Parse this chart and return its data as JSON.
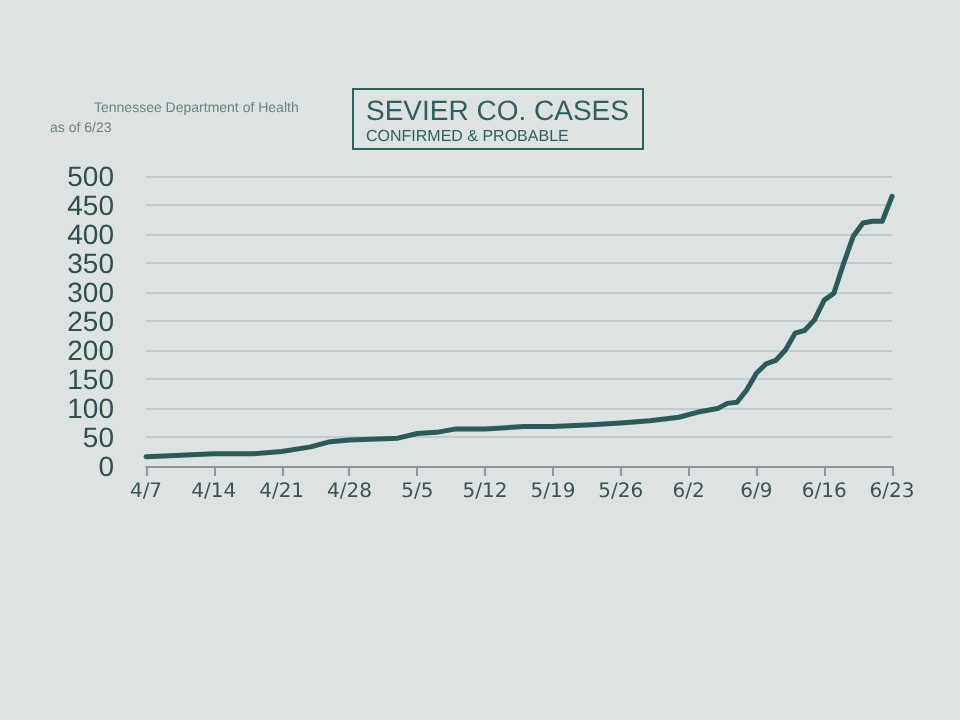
{
  "chart_data": {
    "type": "line",
    "title": "SEVIER CO. CASES",
    "subtitle": "CONFIRMED & PROBABLE",
    "annotations": [
      "Tennessee Department of Health",
      "as of 6/23"
    ],
    "x": [
      "--04-07",
      "--04-10",
      "--04-14",
      "--04-18",
      "--04-21",
      "--04-24",
      "--04-26",
      "--04-28",
      "--05-03",
      "--05-05",
      "--05-07",
      "--05-09",
      "--05-12",
      "--05-16",
      "--05-19",
      "--05-23",
      "--05-26",
      "--05-29",
      "--06-01",
      "--06-03",
      "--06-05",
      "--06-06",
      "--06-07",
      "--06-08",
      "--06-09",
      "--06-10",
      "--06-11",
      "--06-12",
      "--06-13",
      "--06-14",
      "--06-15",
      "--06-16",
      "--06-17",
      "--06-18",
      "--06-19",
      "--06-20",
      "--06-21",
      "--06-22",
      "--06-23"
    ],
    "series": [
      {
        "color": "#2c5a5a",
        "values": [
          16,
          18,
          21,
          21,
          25,
          33,
          42,
          45,
          48,
          56,
          58,
          64,
          64,
          68,
          68,
          71,
          74,
          78,
          84,
          93,
          99,
          108,
          110,
          131,
          160,
          176,
          182,
          200,
          229,
          234,
          252,
          286,
          298,
          349,
          396,
          419,
          422,
          422,
          465
        ]
      }
    ],
    "xlim": [
      "--04-07",
      "--06-23"
    ],
    "xticks": [
      {
        "value": "--04-07",
        "label": "4/7"
      },
      {
        "value": "--04-14",
        "label": "4/14"
      },
      {
        "value": "--04-21",
        "label": "4/21"
      },
      {
        "value": "--04-28",
        "label": "4/28"
      },
      {
        "value": "--05-05",
        "label": "5/5"
      },
      {
        "value": "--05-12",
        "label": "5/12"
      },
      {
        "value": "--05-19",
        "label": "5/19"
      },
      {
        "value": "--05-26",
        "label": "5/26"
      },
      {
        "value": "--06-02",
        "label": "6/2"
      },
      {
        "value": "--06-09",
        "label": "6/9"
      },
      {
        "value": "--06-16",
        "label": "6/16"
      },
      {
        "value": "--06-23",
        "label": "6/23"
      }
    ],
    "ylim": [
      0,
      500
    ],
    "yticks": [
      0,
      50,
      100,
      150,
      200,
      250,
      300,
      350,
      400,
      450,
      500
    ],
    "grid": "y",
    "marker": "none",
    "line_style": "solid"
  }
}
